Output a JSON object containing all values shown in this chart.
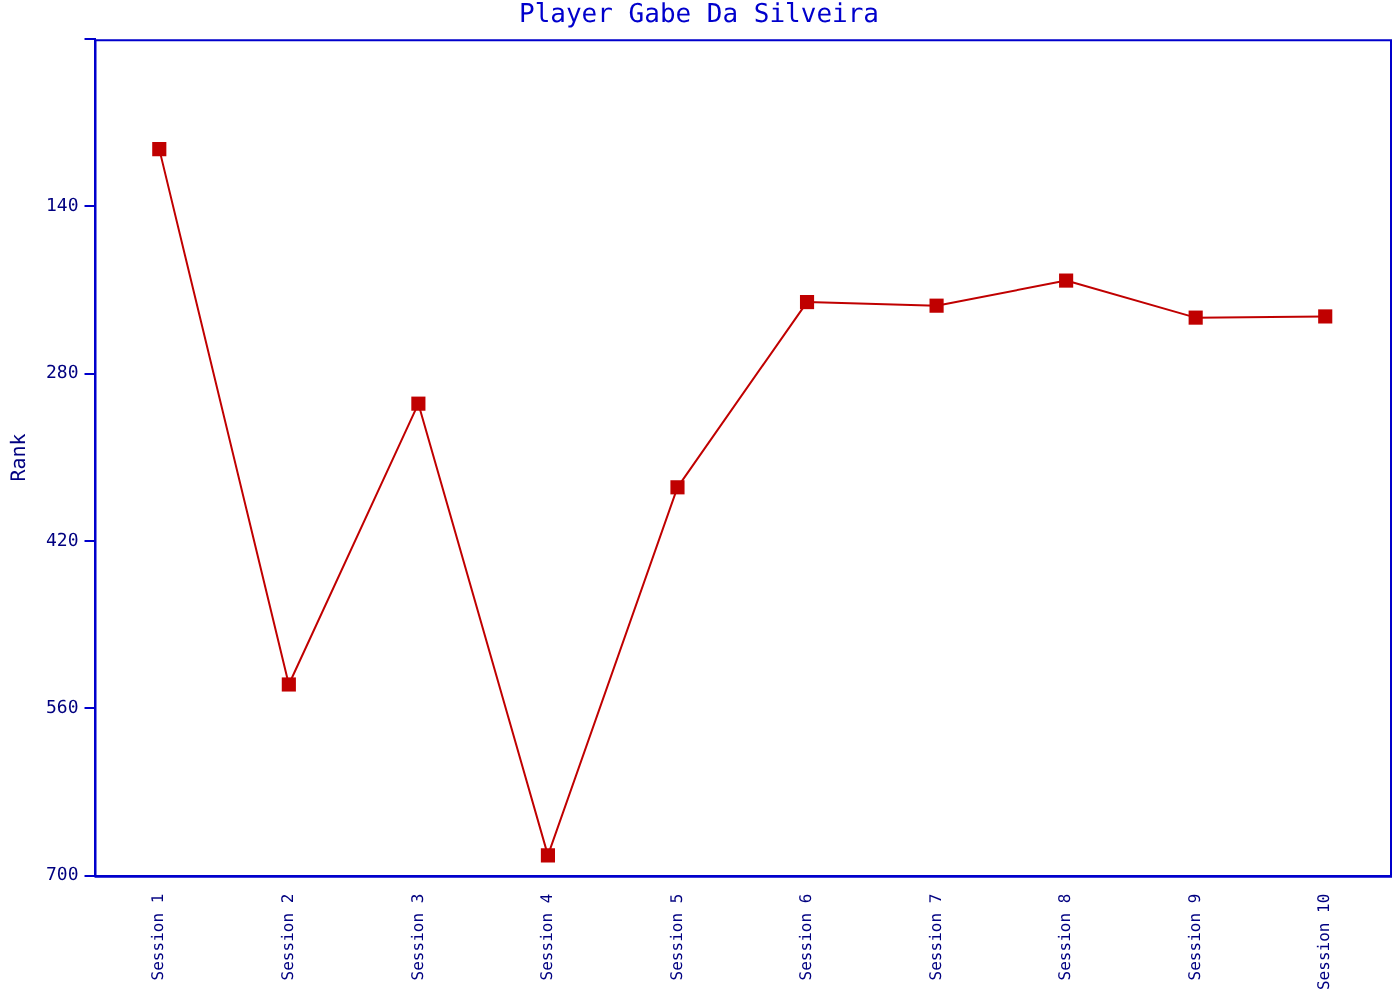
{
  "chart_data": {
    "type": "line",
    "title": "Player Gabe Da Silveira",
    "ylabel": "Rank",
    "categories": [
      "Session 1",
      "Session 2",
      "Session 3",
      "Session 4",
      "Session 5",
      "Session 6",
      "Session 7",
      "Session 8",
      "Session 9",
      "Session 10"
    ],
    "series": [
      {
        "color": "#c00000",
        "values": [
          92,
          540,
          305,
          683,
          375,
          220,
          223,
          202,
          233,
          232
        ]
      }
    ],
    "ylim": [
      700,
      0
    ],
    "yticks": [
      {
        "value": 0,
        "label": null
      },
      140,
      280,
      420,
      560,
      700
    ],
    "grid": false,
    "legend": false,
    "marker": "square",
    "line_style": "solid"
  }
}
